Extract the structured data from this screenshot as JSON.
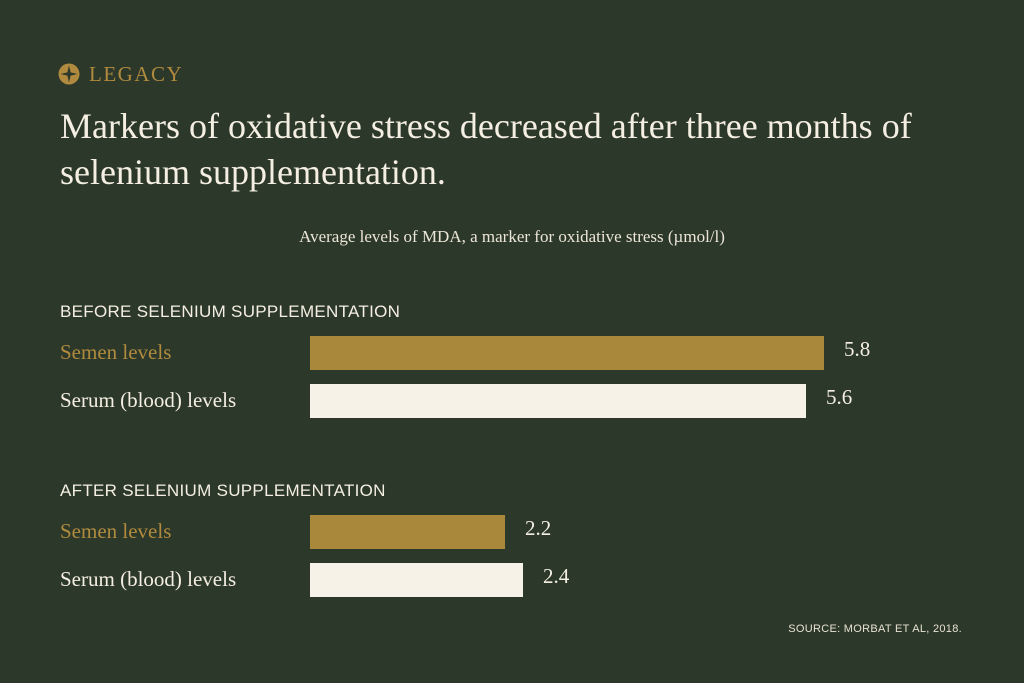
{
  "brand": {
    "name": "LEGACY",
    "icon": "compass-star-icon",
    "color": "#b08a3e"
  },
  "title": "Markers of oxidative stress decreased after three months of selenium supplementation.",
  "subtitle": "Average levels of MDA, a marker for oxidative stress (µmol/l)",
  "source": "SOURCE: MORBAT ET AL, 2018.",
  "colors": {
    "background": "#2c3829",
    "semen": "#a9873b",
    "serum": "#f7f2e7",
    "semen_label": "#b08a3e",
    "serum_label": "#f5efe3"
  },
  "chart_data": {
    "type": "bar",
    "orientation": "horizontal",
    "title": "Markers of oxidative stress decreased after three months of selenium supplementation.",
    "subtitle": "Average levels of MDA, a marker for oxidative stress (µmol/l)",
    "xlim": [
      0,
      6.5
    ],
    "grid": false,
    "groups": [
      {
        "heading": "BEFORE SELENIUM SUPPLEMENTATION",
        "rows": [
          {
            "label": "Semen levels",
            "value": 5.8,
            "value_label": "5.8",
            "series": "semen"
          },
          {
            "label": "Serum (blood) levels",
            "value": 5.6,
            "value_label": "5.6",
            "series": "serum"
          }
        ]
      },
      {
        "heading": "AFTER SELENIUM SUPPLEMENTATION",
        "rows": [
          {
            "label": "Semen levels",
            "value": 2.2,
            "value_label": "2.2",
            "series": "semen"
          },
          {
            "label": "Serum (blood) levels",
            "value": 2.4,
            "value_label": "2.4",
            "series": "serum"
          }
        ]
      }
    ]
  }
}
